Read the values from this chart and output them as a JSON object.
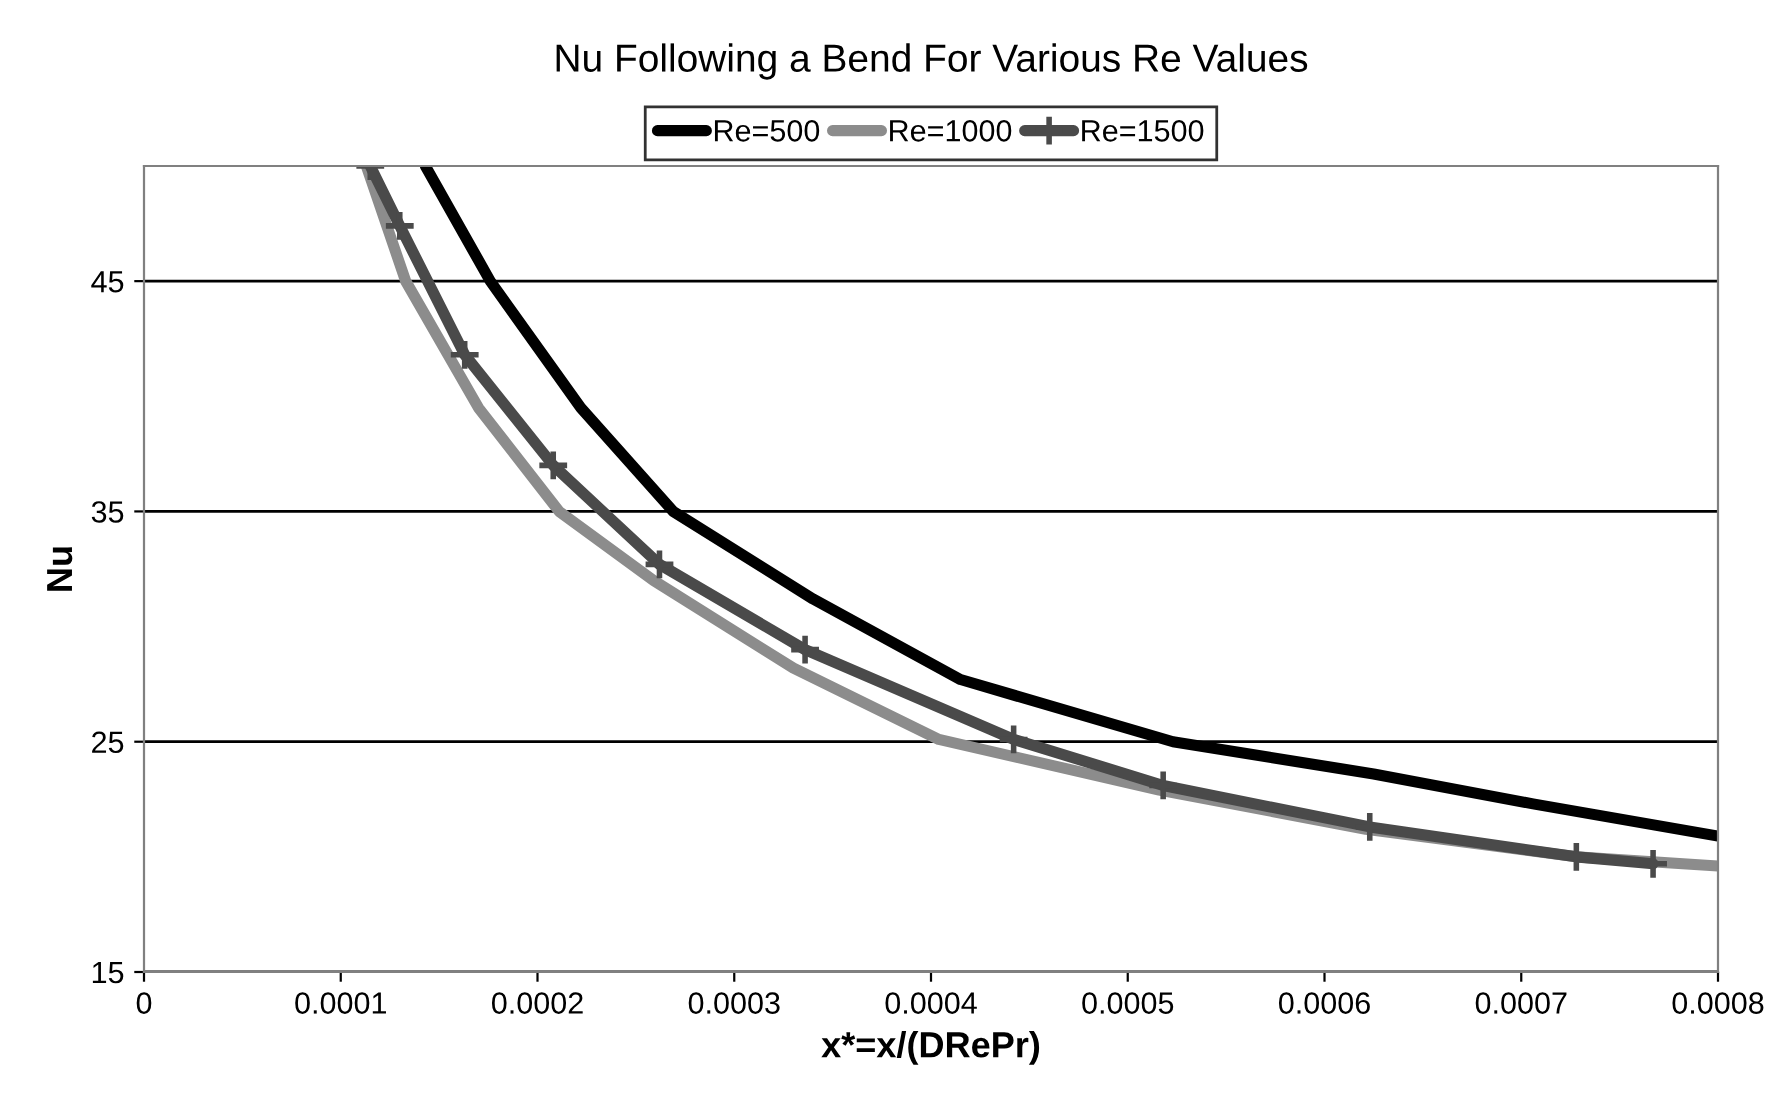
{
  "chart_data": {
    "type": "line",
    "title": "Nu Following a Bend For Various Re Values",
    "xlabel": "x*=x/(DRePr)",
    "ylabel": "Nu",
    "xlim": [
      0,
      0.0008
    ],
    "xticks": [
      0,
      0.0001,
      0.0002,
      0.0003,
      0.0004,
      0.0005,
      0.0006,
      0.0007,
      0.0008
    ],
    "ylim": [
      15,
      50
    ],
    "yticks": [
      15,
      25,
      35,
      45
    ],
    "grid": "y",
    "legend": "top",
    "series": [
      {
        "name": "Re=500",
        "color": "#000000",
        "marker": "none",
        "x": [
          0.000143,
          0.000176,
          0.000222,
          0.000269,
          0.00034,
          0.000415,
          0.000523,
          0.000625,
          0.000706,
          0.0008
        ],
        "values": [
          50,
          45,
          39.5,
          35,
          31.2,
          27.7,
          25,
          23.6,
          22.3,
          20.9
        ]
      },
      {
        "name": "Re=1000",
        "color": "#8c8c8c",
        "marker": "none",
        "x": [
          0.000113,
          0.000133,
          0.00017,
          0.000211,
          0.000259,
          0.00033,
          0.000404,
          0.000516,
          0.000621,
          0.000728,
          0.0008
        ],
        "values": [
          50,
          45,
          39.5,
          35,
          32.0,
          28.2,
          25.1,
          22.9,
          21.2,
          20.0,
          19.6
        ]
      },
      {
        "name": "Re=1500",
        "color": "#4a4a4a",
        "marker": "cross",
        "x": [
          0.000115,
          0.00013,
          0.000163,
          0.000208,
          0.000262,
          0.000336,
          0.000442,
          0.000518,
          0.000623,
          0.000728,
          0.000767
        ],
        "values": [
          50,
          47.4,
          41.8,
          37.0,
          32.7,
          29.0,
          25.1,
          23.1,
          21.3,
          20.0,
          19.7
        ]
      }
    ]
  }
}
